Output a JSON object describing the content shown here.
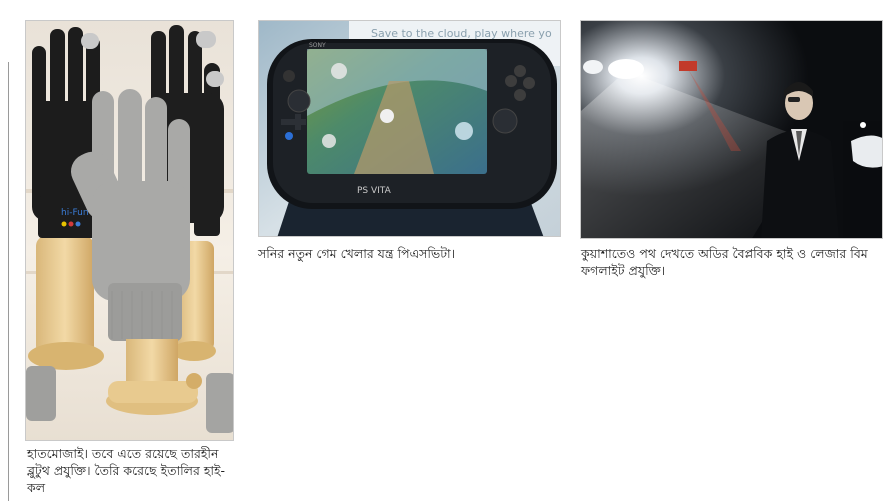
{
  "photos": [
    {
      "id": "gloves",
      "caption": "হাতমোজাই। তবে এতে রয়েছে তারহীন ব্লুটুথ প্রযুক্তি। তৈরি করেছে ইতালির হাই-কল",
      "cuff_logo": "hi-Fun"
    },
    {
      "id": "psvita",
      "caption": "সনির নতুন গেম খেলার যন্ত্র পিএসভিটা।",
      "banner_text": "Save to the cloud, play where yo",
      "device_label": "PS VITA",
      "brand_label": "SONY"
    },
    {
      "id": "foglight",
      "caption": "কুয়াশাতেও পথ দেখতে অডির বৈপ্লবিক হাই ও লেজার বিম ফগলাইট প্রযুক্তি।"
    }
  ]
}
